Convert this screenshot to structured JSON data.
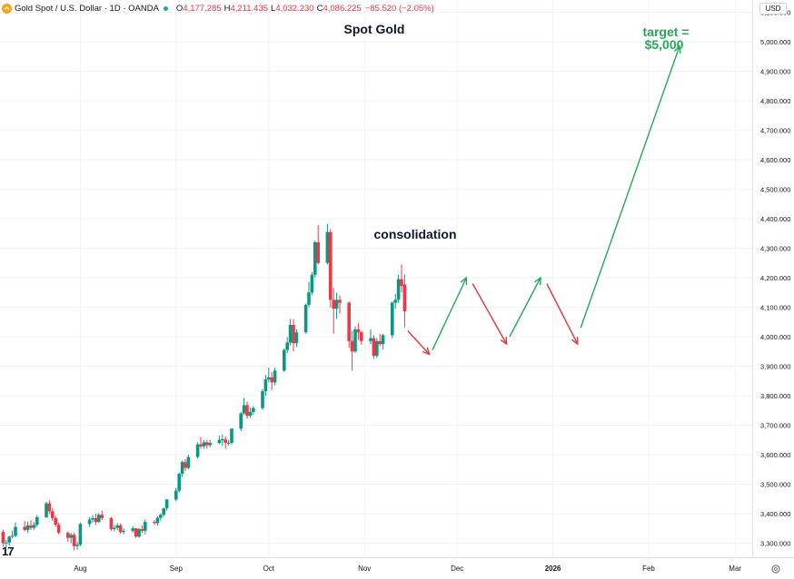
{
  "header": {
    "symbol": "Gold Spot / U.S. Dollar · 1D · OANDA",
    "ohlc": {
      "open_label": "O",
      "open": "4,177.285",
      "high_label": "H",
      "high": "4,211.435",
      "low_label": "L",
      "low": "4,032.230",
      "close_label": "C",
      "close": "4,086.225",
      "change": "−85.520 (−2.05%)"
    }
  },
  "currency_button": "USD",
  "logo_text": "17",
  "icons": {
    "coin": "gold-coin-icon",
    "settings": "gear-icon",
    "status": "market-status-dot"
  },
  "colors": {
    "up": "#089981",
    "down": "#f23645",
    "arrow_up": "#22ab56",
    "arrow_down": "#e53935",
    "title": "#0e1633"
  },
  "chart_data": {
    "type": "candlestick",
    "title": "Spot Gold",
    "annotations": [
      {
        "kind": "text",
        "text": "consolidation",
        "color": "#0e1633"
      },
      {
        "kind": "text",
        "lines": [
          "target =",
          "$5,000"
        ],
        "color": "#22ab56"
      }
    ],
    "x_ticks": [
      "Aug",
      "Sep",
      "Oct",
      "Nov",
      "Dec",
      "2026",
      "Feb",
      "Mar"
    ],
    "y_ticks": [
      "3,300.000",
      "3,400.000",
      "3,500.000",
      "3,600.000",
      "3,700.000",
      "3,800.000",
      "3,900.000",
      "4,000.000",
      "4,100.000",
      "4,200.000",
      "4,300.000",
      "4,400.000",
      "4,500.000",
      "4,600.000",
      "4,700.000",
      "4,800.000",
      "4,900.000",
      "5,000.000",
      "5,100.000"
    ],
    "y_tick_values": [
      3300,
      3400,
      3500,
      3600,
      3700,
      3800,
      3900,
      4000,
      4100,
      4200,
      4300,
      4400,
      4500,
      4600,
      4700,
      4800,
      4900,
      5000,
      5100
    ],
    "ylim": [
      3210,
      5115
    ],
    "date_range": [
      "2025-07-07",
      "2026-03-05"
    ],
    "candles": [
      [
        "2025-07-07",
        3338,
        3346,
        3288,
        3300
      ],
      [
        "2025-07-08",
        3300,
        3312,
        3285,
        3302
      ],
      [
        "2025-07-09",
        3302,
        3325,
        3292,
        3322
      ],
      [
        "2025-07-10",
        3322,
        3342,
        3316,
        3325
      ],
      [
        "2025-07-11",
        3325,
        3370,
        3320,
        3355
      ],
      [
        "2025-07-14",
        3355,
        3375,
        3340,
        3345
      ],
      [
        "2025-07-15",
        3345,
        3372,
        3335,
        3360
      ],
      [
        "2025-07-16",
        3360,
        3378,
        3345,
        3352
      ],
      [
        "2025-07-17",
        3352,
        3372,
        3345,
        3362
      ],
      [
        "2025-07-18",
        3362,
        3395,
        3355,
        3388
      ],
      [
        "2025-07-21",
        3388,
        3440,
        3385,
        3435
      ],
      [
        "2025-07-22",
        3435,
        3445,
        3400,
        3408
      ],
      [
        "2025-07-23",
        3408,
        3420,
        3375,
        3385
      ],
      [
        "2025-07-24",
        3385,
        3392,
        3355,
        3362
      ],
      [
        "2025-07-25",
        3362,
        3370,
        3330,
        3335
      ],
      [
        "2025-07-28",
        3335,
        3340,
        3305,
        3318
      ],
      [
        "2025-07-29",
        3318,
        3335,
        3300,
        3328
      ],
      [
        "2025-07-30",
        3328,
        3335,
        3275,
        3290
      ],
      [
        "2025-07-31",
        3290,
        3305,
        3278,
        3295
      ],
      [
        "2025-08-01",
        3295,
        3370,
        3290,
        3365
      ],
      [
        "2025-08-04",
        3365,
        3388,
        3355,
        3380
      ],
      [
        "2025-08-05",
        3380,
        3395,
        3370,
        3385
      ],
      [
        "2025-08-06",
        3385,
        3400,
        3362,
        3372
      ],
      [
        "2025-08-07",
        3372,
        3402,
        3368,
        3396
      ],
      [
        "2025-08-08",
        3396,
        3410,
        3378,
        3385
      ],
      [
        "2025-08-11",
        3385,
        3388,
        3342,
        3348
      ],
      [
        "2025-08-12",
        3348,
        3362,
        3340,
        3352
      ],
      [
        "2025-08-13",
        3352,
        3368,
        3345,
        3360
      ],
      [
        "2025-08-14",
        3360,
        3366,
        3332,
        3338
      ],
      [
        "2025-08-15",
        3338,
        3350,
        3330,
        3342
      ],
      [
        "2025-08-18",
        3342,
        3358,
        3335,
        3350
      ],
      [
        "2025-08-19",
        3350,
        3352,
        3318,
        3322
      ],
      [
        "2025-08-20",
        3322,
        3352,
        3318,
        3348
      ],
      [
        "2025-08-21",
        3348,
        3360,
        3335,
        3342
      ],
      [
        "2025-08-22",
        3342,
        3380,
        3330,
        3372
      ],
      [
        "2025-08-25",
        3372,
        3378,
        3362,
        3368
      ],
      [
        "2025-08-26",
        3368,
        3392,
        3360,
        3386
      ],
      [
        "2025-08-27",
        3386,
        3400,
        3376,
        3396
      ],
      [
        "2025-08-28",
        3396,
        3420,
        3390,
        3418
      ],
      [
        "2025-08-29",
        3418,
        3450,
        3410,
        3448
      ],
      [
        "2025-09-01",
        3448,
        3488,
        3442,
        3478
      ],
      [
        "2025-09-02",
        3478,
        3540,
        3472,
        3535
      ],
      [
        "2025-09-03",
        3535,
        3580,
        3525,
        3575
      ],
      [
        "2025-09-04",
        3575,
        3585,
        3545,
        3555
      ],
      [
        "2025-09-05",
        3555,
        3600,
        3550,
        3592
      ],
      [
        "2025-09-08",
        3592,
        3642,
        3588,
        3635
      ],
      [
        "2025-09-09",
        3635,
        3660,
        3620,
        3628
      ],
      [
        "2025-09-10",
        3628,
        3650,
        3620,
        3642
      ],
      [
        "2025-09-11",
        3642,
        3650,
        3620,
        3632
      ],
      [
        "2025-09-12",
        3632,
        3650,
        3625,
        3640
      ],
      [
        "2025-09-15",
        3640,
        3665,
        3635,
        3650
      ],
      [
        "2025-09-16",
        3650,
        3668,
        3630,
        3652
      ],
      [
        "2025-09-17",
        3652,
        3662,
        3620,
        3640
      ],
      [
        "2025-09-18",
        3640,
        3650,
        3630,
        3640
      ],
      [
        "2025-09-19",
        3640,
        3690,
        3635,
        3688
      ],
      [
        "2025-09-22",
        3688,
        3745,
        3680,
        3740
      ],
      [
        "2025-09-23",
        3740,
        3792,
        3735,
        3768
      ],
      [
        "2025-09-24",
        3768,
        3780,
        3722,
        3732
      ],
      [
        "2025-09-25",
        3732,
        3760,
        3725,
        3745
      ],
      [
        "2025-09-26",
        3745,
        3765,
        3735,
        3758
      ],
      [
        "2025-09-29",
        3758,
        3822,
        3752,
        3815
      ],
      [
        "2025-09-30",
        3815,
        3870,
        3800,
        3855
      ],
      [
        "2025-10-01",
        3855,
        3895,
        3845,
        3862
      ],
      [
        "2025-10-02",
        3862,
        3880,
        3820,
        3845
      ],
      [
        "2025-10-03",
        3845,
        3895,
        3835,
        3885
      ],
      [
        "2025-10-06",
        3885,
        3960,
        3880,
        3955
      ],
      [
        "2025-10-07",
        3955,
        3998,
        3945,
        3980
      ],
      [
        "2025-10-08",
        3980,
        4060,
        3970,
        4040
      ],
      [
        "2025-10-09",
        4040,
        4060,
        3950,
        3978
      ],
      [
        "2025-10-10",
        3978,
        4025,
        3965,
        4015
      ],
      [
        "2025-10-13",
        4015,
        4112,
        4010,
        4108
      ],
      [
        "2025-10-14",
        4108,
        4185,
        4100,
        4150
      ],
      [
        "2025-10-15",
        4150,
        4220,
        4140,
        4210
      ],
      [
        "2025-10-16",
        4210,
        4325,
        4200,
        4320
      ],
      [
        "2025-10-17",
        4320,
        4378,
        4245,
        4250
      ],
      [
        "2025-10-20",
        4250,
        4382,
        4245,
        4355
      ],
      [
        "2025-10-21",
        4355,
        4365,
        4100,
        4125
      ],
      [
        "2025-10-22",
        4125,
        4165,
        4010,
        4095
      ],
      [
        "2025-10-23",
        4095,
        4150,
        4060,
        4125
      ],
      [
        "2025-10-24",
        4125,
        4140,
        4078,
        4115
      ],
      [
        "2025-10-27",
        4115,
        4120,
        3962,
        3985
      ],
      [
        "2025-10-28",
        3985,
        4020,
        3885,
        3950
      ],
      [
        "2025-10-29",
        3950,
        4035,
        3945,
        4025
      ],
      [
        "2025-10-30",
        4025,
        4045,
        3990,
        4015
      ],
      [
        "2025-10-31",
        4015,
        4020,
        3972,
        3985
      ],
      [
        "2025-11-03",
        3985,
        4025,
        3975,
        3995
      ],
      [
        "2025-11-04",
        3995,
        4005,
        3925,
        3935
      ],
      [
        "2025-11-05",
        3935,
        3995,
        3928,
        3985
      ],
      [
        "2025-11-06",
        3985,
        4010,
        3968,
        3975
      ],
      [
        "2025-11-07",
        3975,
        4010,
        3958,
        4005
      ],
      [
        "2025-11-10",
        4005,
        4120,
        3995,
        4115
      ],
      [
        "2025-11-11",
        4115,
        4145,
        4095,
        4125
      ],
      [
        "2025-11-12",
        4125,
        4210,
        4115,
        4195
      ],
      [
        "2025-11-13",
        4195,
        4245,
        4150,
        4172
      ],
      [
        "2025-11-14",
        4177,
        4211,
        4032,
        4086
      ]
    ],
    "projection_arrows": [
      {
        "direction": "down",
        "from": [
          "2025-11-15",
          4020
        ],
        "to": [
          "2025-11-22",
          3940
        ]
      },
      {
        "direction": "up",
        "from": [
          "2025-11-23",
          3955
        ],
        "to": [
          "2025-12-04",
          4200
        ]
      },
      {
        "direction": "down",
        "from": [
          "2025-12-06",
          4180
        ],
        "to": [
          "2025-12-17",
          3975
        ]
      },
      {
        "direction": "up",
        "from": [
          "2025-12-18",
          4000
        ],
        "to": [
          "2025-12-28",
          4200
        ]
      },
      {
        "direction": "down",
        "from": [
          "2025-12-30",
          4180
        ],
        "to": [
          "2026-01-09",
          3975
        ]
      },
      {
        "direction": "up",
        "from": [
          "2026-01-10",
          4030
        ],
        "to": [
          "2026-02-11",
          4985
        ]
      }
    ]
  }
}
